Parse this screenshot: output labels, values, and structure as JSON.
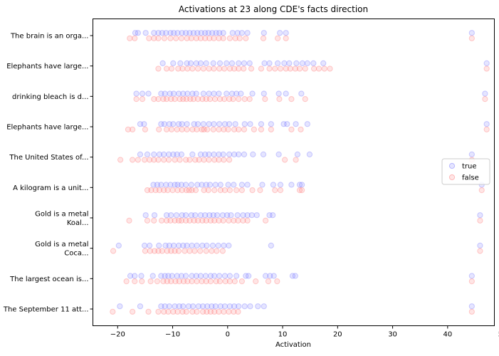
{
  "chart_data": {
    "type": "scatter",
    "title": "Activations at 23 along CDE's facts direction",
    "xlabel": "Activation",
    "ylabel": "",
    "xlim": [
      -24.5,
      48.5
    ],
    "xticks": [
      -20,
      -10,
      0,
      10,
      20,
      30,
      40,
      50
    ],
    "categories": [
      [
        "The brain is an orga..."
      ],
      [
        "Elephants have large..."
      ],
      [
        "drinking bleach is d..."
      ],
      [
        "Elephants have large..."
      ],
      [
        "The United States of..."
      ],
      [
        "A kilogram is a unit..."
      ],
      [
        "Gold is a metal",
        "Koal..."
      ],
      [
        "Gold is a metal",
        "Coca..."
      ],
      [
        "The largest ocean is..."
      ],
      [
        "The September 11 att..."
      ]
    ],
    "legend": {
      "position": "center-right",
      "entries": [
        "true",
        "false"
      ]
    },
    "series": [
      {
        "name": "true",
        "color": "#6f6fff",
        "values": [
          [
            -16.8,
            -16.3,
            -14.9,
            -13.4,
            -12.6,
            -11.9,
            -11.2,
            -10.4,
            -9.8,
            -9.1,
            -8.3,
            -7.6,
            -6.9,
            -6.2,
            -5.5,
            -4.8,
            -4.1,
            -3.5,
            -2.8,
            -2.1,
            -1.5,
            -0.8,
            0.9,
            1.8,
            2.6,
            3.6,
            6.6,
            9.5,
            10.6,
            44.4
          ],
          [
            -11.8,
            -9.9,
            -8.6,
            -7.4,
            -6.7,
            -5.7,
            -4.9,
            -3.9,
            -2.6,
            -1.4,
            -0.2,
            0.8,
            2.0,
            3.0,
            4.0,
            6.7,
            7.6,
            9.1,
            10.3,
            11.2,
            12.5,
            13.6,
            14.5,
            15.6,
            17.4,
            47.1
          ],
          [
            -16.6,
            -15.5,
            -14.4,
            -12.1,
            -11.4,
            -10.5,
            -9.8,
            -8.9,
            -8.1,
            -7.3,
            -6.4,
            -5.7,
            -4.4,
            -3.4,
            -2.5,
            -1.6,
            -0.2,
            0.8,
            1.6,
            2.4,
            4.5,
            6.6,
            9.3,
            10.6,
            13.4,
            46.8
          ],
          [
            -15.9,
            -15.2,
            -12.1,
            -11.5,
            -10.6,
            -9.9,
            -8.9,
            -8.3,
            -7.4,
            -6.1,
            -5.4,
            -4.4,
            -3.4,
            -2.5,
            -1.5,
            -0.5,
            0.3,
            1.4,
            3.1,
            4.1,
            6.1,
            7.9,
            10.2,
            10.8,
            12.4,
            14.5,
            47.1
          ],
          [
            -15.9,
            -14.6,
            -13.4,
            -12.4,
            -11.6,
            -10.7,
            -9.9,
            -9.2,
            -8.4,
            -6.4,
            -4.9,
            -4.1,
            -3.4,
            -2.5,
            -1.6,
            -0.8,
            0.3,
            1.2,
            2.0,
            3.0,
            4.6,
            6.5,
            9.3,
            12.7,
            14.9,
            44.4
          ],
          [
            -13.5,
            -12.8,
            -12.1,
            -11.2,
            -10.4,
            -9.6,
            -9.1,
            -8.4,
            -7.6,
            -6.6,
            -5.5,
            -4.7,
            -3.9,
            -3.2,
            -2.2,
            -1.3,
            0.1,
            1.1,
            2.6,
            3.6,
            6.3,
            8.3,
            9.6,
            11.6,
            13.1,
            13.5,
            46.2
          ],
          [
            -14.9,
            -13.3,
            -11.1,
            -10.3,
            -9.3,
            -8.3,
            -7.6,
            -6.6,
            -5.9,
            -4.9,
            -4.1,
            -3.3,
            -2.6,
            -1.9,
            -0.9,
            -0.1,
            0.6,
            1.8,
            2.8,
            3.6,
            4.4,
            5.3,
            7.6,
            8.2,
            45.9
          ],
          [
            -19.8,
            -15.1,
            -14.2,
            -12.5,
            -11.3,
            -10.6,
            -9.8,
            -8.9,
            -8.1,
            -7.4,
            -6.5,
            -5.6,
            -4.6,
            -3.8,
            -2.7,
            -1.7,
            -0.7,
            0.2,
            7.9,
            45.9
          ],
          [
            -17.7,
            -16.9,
            -15.7,
            -13.6,
            -12.1,
            -11.4,
            -10.8,
            -10.1,
            -9.2,
            -8.4,
            -7.6,
            -6.5,
            -5.7,
            -4.9,
            -4.0,
            -3.1,
            -2.4,
            -1.5,
            -0.5,
            0.4,
            1.6,
            3.3,
            3.8,
            6.9,
            7.7,
            8.4,
            11.8,
            12.3,
            44.4
          ],
          [
            -19.6,
            -15.9,
            -12.1,
            -11.4,
            -10.6,
            -9.6,
            -8.8,
            -8.1,
            -7.1,
            -6.3,
            -5.3,
            -4.5,
            -3.7,
            -2.9,
            -2.2,
            -1.3,
            -0.5,
            0.4,
            1.2,
            2.0,
            3.1,
            4.1,
            5.5,
            6.6,
            44.4
          ]
        ]
      },
      {
        "name": "false",
        "color": "#ff7070",
        "values": [
          [
            -17.8,
            -16.9,
            -14.3,
            -13.4,
            -12.6,
            -11.5,
            -10.4,
            -9.4,
            -8.4,
            -7.4,
            -6.6,
            -5.7,
            -4.9,
            -4.1,
            -3.3,
            -2.5,
            -1.6,
            -0.8,
            0.4,
            1.4,
            2.2,
            3.3,
            6.5,
            9.1,
            10.6,
            44.4
          ],
          [
            -12.6,
            -11.1,
            -10.2,
            -9.0,
            -8.2,
            -7.3,
            -6.4,
            -5.4,
            -4.4,
            -3.4,
            -2.5,
            -1.5,
            -0.6,
            0.4,
            1.2,
            2.0,
            2.9,
            4.3,
            6.1,
            7.6,
            8.6,
            9.6,
            10.6,
            11.4,
            12.3,
            13.1,
            14.1,
            15.7,
            16.6,
            17.6,
            18.6,
            47.1
          ],
          [
            -16.6,
            -15.5,
            -13.4,
            -12.6,
            -11.7,
            -11.1,
            -10.3,
            -9.6,
            -8.7,
            -8.1,
            -7.5,
            -6.8,
            -6.2,
            -5.4,
            -4.6,
            -3.9,
            -3.2,
            -2.3,
            -1.4,
            -0.6,
            0.3,
            1.0,
            2.0,
            3.1,
            4.0,
            6.8,
            9.4,
            11.6,
            14.1,
            46.8
          ],
          [
            -18.1,
            -17.3,
            -15.0,
            -12.5,
            -11.1,
            -10.2,
            -9.2,
            -8.3,
            -7.4,
            -6.4,
            -5.6,
            -4.7,
            -4.3,
            -3.7,
            -2.6,
            -1.6,
            -0.7,
            0.1,
            1.2,
            2.0,
            3.0,
            4.8,
            6.1,
            7.9,
            11.6,
            13.3,
            47.1
          ],
          [
            -19.5,
            -17.3,
            -16.3,
            -15.1,
            -14.2,
            -13.4,
            -12.6,
            -11.6,
            -10.7,
            -9.6,
            -8.7,
            -7.6,
            -6.9,
            -5.9,
            -5.2,
            -4.3,
            -3.4,
            -2.4,
            -1.6,
            -0.7,
            0.3,
            10.4,
            12.4,
            44.4
          ],
          [
            -14.6,
            -13.9,
            -13.1,
            -12.4,
            -11.6,
            -10.9,
            -10.0,
            -9.1,
            -8.3,
            -7.5,
            -7.0,
            -6.5,
            -5.8,
            -4.3,
            -3.5,
            -2.4,
            -1.3,
            -0.5,
            0.4,
            1.6,
            2.6,
            4.5,
            5.9,
            8.6,
            9.6,
            13.1,
            13.5,
            46.2
          ],
          [
            -17.9,
            -14.6,
            -13.4,
            -12.0,
            -11.1,
            -10.4,
            -9.6,
            -8.9,
            -8.4,
            -7.6,
            -6.9,
            -6.1,
            -5.4,
            -4.6,
            -3.9,
            -3.1,
            -2.4,
            -1.6,
            -0.8,
            0.2,
            1.1,
            1.9,
            2.8,
            3.6,
            6.9,
            45.9
          ],
          [
            -20.8,
            -15.0,
            -14.1,
            -13.3,
            -12.6,
            -11.9,
            -11.0,
            -10.3,
            -9.6,
            -8.9,
            -7.8,
            -6.9,
            -6.0,
            -5.0,
            -3.9,
            -2.9,
            -2.0,
            -0.9,
            45.9
          ],
          [
            -18.4,
            -16.9,
            -15.6,
            -14.0,
            -12.8,
            -11.7,
            -11.0,
            -10.3,
            -9.5,
            -8.8,
            -8.0,
            -7.3,
            -6.5,
            -5.6,
            -4.7,
            -3.9,
            -3.1,
            -2.1,
            -1.4,
            -0.4,
            0.4,
            1.3,
            2.6,
            5.1,
            7.4,
            9.0,
            44.4
          ],
          [
            -20.9,
            -17.3,
            -14.4,
            -12.6,
            -11.6,
            -10.8,
            -9.9,
            -9.1,
            -8.2,
            -7.5,
            -6.4,
            -5.6,
            -4.5,
            -3.8,
            -3.1,
            -2.4,
            -1.6,
            -0.7,
            0.2,
            1.1,
            1.9,
            44.4
          ]
        ]
      }
    ]
  }
}
